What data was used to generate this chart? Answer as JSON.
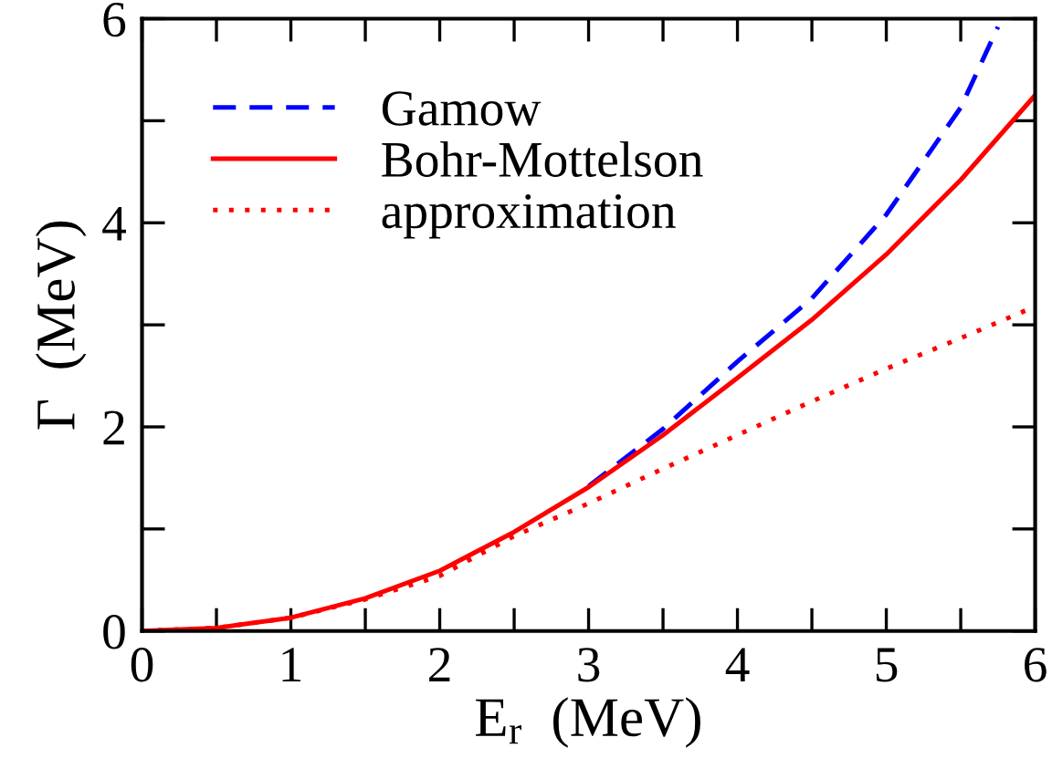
{
  "chart_data": {
    "type": "line",
    "xlabel": "E$_{r}$  (MeV)",
    "ylabel": "Γ  (MeV)",
    "xlim": [
      0,
      6
    ],
    "ylim": [
      0,
      6
    ],
    "xticks": [
      0,
      {
        "value": 0.5,
        "label": null
      },
      1,
      {
        "value": 1.5,
        "label": null
      },
      2,
      {
        "value": 2.5,
        "label": null
      },
      3,
      {
        "value": 3.5,
        "label": null
      },
      4,
      {
        "value": 4.5,
        "label": null
      },
      5,
      {
        "value": 5.5,
        "label": null
      },
      6
    ],
    "yticks": [
      0,
      {
        "value": 1,
        "label": null
      },
      2,
      {
        "value": 3,
        "label": null
      },
      4,
      {
        "value": 5,
        "label": null
      },
      6
    ],
    "grid": false,
    "legend": "top left",
    "marker": "none",
    "series": [
      {
        "name": "Gamow",
        "color": "#0000ff",
        "line_style": "dashed",
        "x": [
          3,
          3.5,
          4,
          4.5,
          5,
          5.5,
          5.75
        ],
        "values": [
          1.42,
          1.98,
          2.64,
          3.26,
          4.08,
          5.13,
          5.92
        ]
      },
      {
        "name": "Bohr-Mottelson",
        "color": "#ff0000",
        "line_style": "solid",
        "x": [
          0,
          0.5,
          1,
          1.5,
          2,
          2.5,
          3,
          3.5,
          4,
          4.5,
          5,
          5.5,
          6
        ],
        "values": [
          0,
          0.03,
          0.13,
          0.32,
          0.59,
          0.97,
          1.41,
          1.92,
          2.48,
          3.05,
          3.69,
          4.42,
          5.25
        ]
      },
      {
        "name": "approximation",
        "color": "#ff0000",
        "line_style": "dotted",
        "x": [
          0,
          0.5,
          1,
          1.5,
          2,
          2.5,
          3,
          3.5,
          4,
          4.5,
          5,
          5.5,
          6
        ],
        "values": [
          0,
          0.03,
          0.13,
          0.31,
          0.54,
          0.93,
          1.25,
          1.59,
          1.92,
          2.25,
          2.57,
          2.87,
          3.18
        ]
      }
    ]
  }
}
